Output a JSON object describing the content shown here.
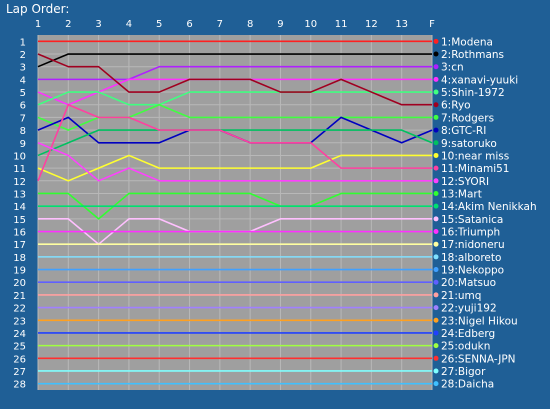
{
  "chart_data": {
    "type": "line",
    "title": "Lap Order:",
    "x_ticks": [
      "1",
      "2",
      "3",
      "4",
      "5",
      "6",
      "7",
      "8",
      "9",
      "10",
      "11",
      "12",
      "13",
      "F"
    ],
    "y_ticks": [
      "1",
      "2",
      "3",
      "4",
      "5",
      "6",
      "7",
      "8",
      "9",
      "10",
      "11",
      "12",
      "13",
      "14",
      "15",
      "16",
      "17",
      "18",
      "19",
      "20",
      "21",
      "22",
      "23",
      "24",
      "25",
      "26",
      "27",
      "28"
    ],
    "ylim": [
      1,
      28
    ],
    "grid": true,
    "legend_position": "right",
    "colors": {
      "background": "#1f5f96",
      "plot_background": "#9f9f9f",
      "grid": "#b8b8b8",
      "text": "#ffffff"
    },
    "series": [
      {
        "name": "1:Modena",
        "color": "#ff2020",
        "values": [
          1,
          1,
          1,
          1,
          1,
          1,
          1,
          1,
          1,
          1,
          1,
          1,
          1,
          1
        ]
      },
      {
        "name": "2:Rothmans",
        "color": "#000000",
        "values": [
          3,
          2,
          2,
          2,
          2,
          2,
          2,
          2,
          2,
          2,
          2,
          2,
          2,
          2
        ]
      },
      {
        "name": "3:cn",
        "color": "#b020ff",
        "values": [
          4,
          4,
          4,
          4,
          3,
          3,
          3,
          3,
          3,
          3,
          3,
          3,
          3,
          3
        ]
      },
      {
        "name": "4:xanavi-yuuki",
        "color": "#ff30ff",
        "values": [
          5,
          6,
          5,
          4,
          4,
          4,
          4,
          4,
          4,
          4,
          4,
          4,
          4,
          4
        ]
      },
      {
        "name": "5:Shin-1972",
        "color": "#40ff80",
        "values": [
          6,
          5,
          5,
          6,
          6,
          5,
          5,
          5,
          5,
          5,
          5,
          5,
          5,
          5
        ]
      },
      {
        "name": "6:Ryo",
        "color": "#a00020",
        "values": [
          2,
          3,
          3,
          5,
          5,
          4,
          4,
          4,
          5,
          5,
          4,
          5,
          6,
          6
        ]
      },
      {
        "name": "7:Rodgers",
        "color": "#40ff40",
        "values": [
          7,
          8,
          7,
          7,
          6,
          7,
          7,
          7,
          7,
          7,
          7,
          7,
          7,
          7
        ]
      },
      {
        "name": "8:GTC-RI",
        "color": "#0000c0",
        "values": [
          8,
          7,
          9,
          9,
          9,
          8,
          8,
          9,
          9,
          9,
          7,
          8,
          9,
          8
        ]
      },
      {
        "name": "9:satoruko",
        "color": "#00c060",
        "values": [
          10,
          9,
          8,
          8,
          8,
          8,
          8,
          8,
          8,
          8,
          8,
          8,
          8,
          9
        ]
      },
      {
        "name": "10:near miss",
        "color": "#ffff30",
        "values": [
          11,
          12,
          11,
          10,
          11,
          11,
          11,
          11,
          11,
          11,
          10,
          10,
          10,
          10
        ]
      },
      {
        "name": "11:Minami51",
        "color": "#ff40a0",
        "values": [
          12,
          6,
          7,
          7,
          8,
          8,
          8,
          9,
          9,
          9,
          11,
          11,
          11,
          11
        ]
      },
      {
        "name": "12:SYORI",
        "color": "#ff40ff",
        "values": [
          9,
          10,
          12,
          11,
          12,
          12,
          12,
          12,
          12,
          12,
          12,
          12,
          12,
          12
        ]
      },
      {
        "name": "13:Mart",
        "color": "#30ff30",
        "values": [
          13,
          13,
          15,
          13,
          13,
          13,
          13,
          13,
          14,
          14,
          13,
          13,
          13,
          13
        ]
      },
      {
        "name": "14:Akim Nenikkah",
        "color": "#00e070",
        "values": [
          14,
          14,
          14,
          14,
          14,
          14,
          14,
          14,
          14,
          14,
          14,
          14,
          14,
          14
        ]
      },
      {
        "name": "15:Satanica",
        "color": "#ffc0ff",
        "values": [
          15,
          15,
          17,
          15,
          15,
          16,
          16,
          16,
          15,
          15,
          15,
          15,
          15,
          15
        ]
      },
      {
        "name": "16:Triumph",
        "color": "#ff30ff",
        "values": [
          16,
          16,
          16,
          16,
          16,
          16,
          16,
          16,
          16,
          16,
          16,
          16,
          16,
          16
        ]
      },
      {
        "name": "17:nidoneru",
        "color": "#ffffa0",
        "values": [
          17,
          17,
          17,
          17,
          17,
          17,
          17,
          17,
          17,
          17,
          17,
          17,
          17,
          17
        ]
      },
      {
        "name": "18:alboreto",
        "color": "#80e0ff",
        "values": [
          18,
          18,
          18,
          18,
          18,
          18,
          18,
          18,
          18,
          18,
          18,
          18,
          18,
          18
        ]
      },
      {
        "name": "19:Nekoppo",
        "color": "#40a0ff",
        "values": [
          19,
          19,
          19,
          19,
          19,
          19,
          19,
          19,
          19,
          19,
          19,
          19,
          19,
          19
        ]
      },
      {
        "name": "20:Matsuo",
        "color": "#6060ff",
        "values": [
          20,
          20,
          20,
          20,
          20,
          20,
          20,
          20,
          20,
          20,
          20,
          20,
          20,
          20
        ]
      },
      {
        "name": "21:umq",
        "color": "#ffa0a0",
        "values": [
          21,
          21,
          21,
          21,
          21,
          21,
          21,
          21,
          21,
          21,
          21,
          21,
          21,
          21
        ]
      },
      {
        "name": "22:yuji192",
        "color": "#a080ff",
        "values": [
          22,
          22,
          22,
          22,
          22,
          22,
          22,
          22,
          22,
          22,
          22,
          22,
          22,
          22
        ]
      },
      {
        "name": "23:Nigel Hikou",
        "color": "#ffa020",
        "values": [
          23,
          23,
          23,
          23,
          23,
          23,
          23,
          23,
          23,
          23,
          23,
          23,
          23,
          23
        ]
      },
      {
        "name": "24:Edberg",
        "color": "#2040ff",
        "values": [
          24,
          24,
          24,
          24,
          24,
          24,
          24,
          24,
          24,
          24,
          24,
          24,
          24,
          24
        ]
      },
      {
        "name": "25:odukn",
        "color": "#a0ff40",
        "values": [
          25,
          25,
          25,
          25,
          25,
          25,
          25,
          25,
          25,
          25,
          25,
          25,
          25,
          25
        ]
      },
      {
        "name": "26:SENNA-JPN",
        "color": "#ff3030",
        "values": [
          26,
          26,
          26,
          26,
          26,
          26,
          26,
          26,
          26,
          26,
          26,
          26,
          26,
          26
        ]
      },
      {
        "name": "27:Bigor",
        "color": "#80ffff",
        "values": [
          27,
          27,
          27,
          27,
          27,
          27,
          27,
          27,
          27,
          27,
          27,
          27,
          27,
          27
        ]
      },
      {
        "name": "28:Daicha",
        "color": "#40c0ff",
        "values": [
          28,
          28,
          28,
          28,
          28,
          28,
          28,
          28,
          28,
          28,
          28,
          28,
          28,
          28
        ]
      }
    ]
  }
}
